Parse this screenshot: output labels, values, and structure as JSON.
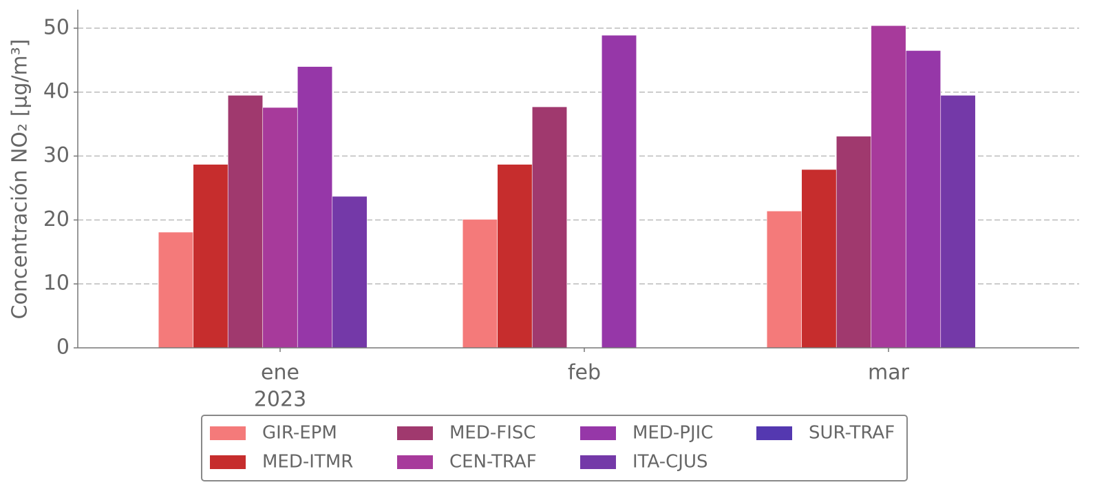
{
  "chart_data": {
    "type": "bar",
    "ylabel": "Concentración NO₂ [μg/m³]",
    "categories": [
      "ene",
      "feb",
      "mar"
    ],
    "x_year_label": "2023",
    "series": [
      {
        "name": "GIR-EPM",
        "color": "#f47a7a",
        "values": [
          18.1,
          20.1,
          21.4
        ]
      },
      {
        "name": "MED-ITMR",
        "color": "#c62d2d",
        "values": [
          28.7,
          28.7,
          27.9
        ]
      },
      {
        "name": "MED-FISC",
        "color": "#a0396e",
        "values": [
          39.5,
          37.7,
          33.1
        ]
      },
      {
        "name": "CEN-TRAF",
        "color": "#a73a9b",
        "values": [
          37.6,
          null,
          50.4
        ]
      },
      {
        "name": "MED-PJIC",
        "color": "#9637a8",
        "values": [
          44.0,
          48.9,
          46.5
        ]
      },
      {
        "name": "ITA-CJUS",
        "color": "#7439a8",
        "values": [
          23.7,
          null,
          39.5
        ]
      },
      {
        "name": "SUR-TRAF",
        "color": "#5438b0",
        "values": [
          null,
          null,
          null
        ]
      }
    ],
    "ylim": [
      0,
      52.9
    ],
    "yticks": [
      0,
      10,
      20,
      30,
      40,
      50
    ],
    "grid": true,
    "legend": "lower center"
  }
}
